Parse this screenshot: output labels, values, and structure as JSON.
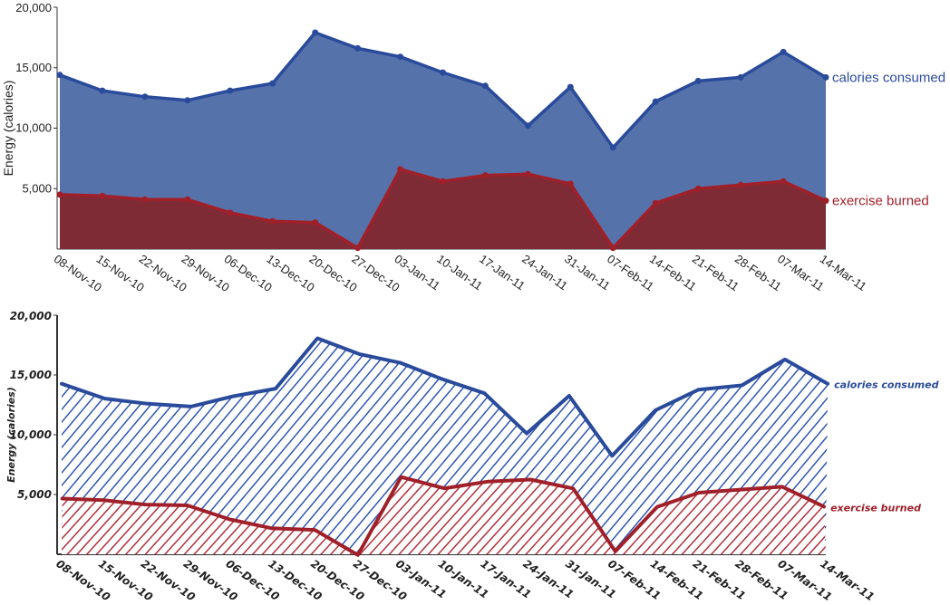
{
  "chart_data": [
    {
      "type": "area",
      "style": "clean",
      "ylabel": "Energy (calories)",
      "ylim": [
        0,
        20000
      ],
      "yticks": [
        "20,000",
        "15,000",
        "10,000",
        "5,000"
      ],
      "x": [
        "08-Nov-10",
        "15-Nov-10",
        "22-Nov-10",
        "29-Nov-10",
        "06-Dec-10",
        "13-Dec-10",
        "20-Dec-10",
        "27-Dec-10",
        "03-Jan-11",
        "10-Jan-11",
        "17-Jan-11",
        "24-Jan-11",
        "31-Jan-11",
        "07-Feb-11",
        "14-Feb-11",
        "21-Feb-11",
        "28-Feb-11",
        "07-Mar-11",
        "14-Mar-11"
      ],
      "series": [
        {
          "name": "calories consumed",
          "color": "#2a4b9b",
          "fill": "#5672aa",
          "values": [
            14400,
            13100,
            12600,
            12300,
            13100,
            13700,
            17900,
            16600,
            15900,
            14600,
            13500,
            10200,
            13400,
            8400,
            12200,
            13900,
            14200,
            16300,
            14200
          ]
        },
        {
          "name": "exercise burned",
          "color": "#a0202a",
          "fill": "#7e2b36",
          "values": [
            4500,
            4400,
            4100,
            4100,
            3000,
            2300,
            2200,
            100,
            6600,
            5600,
            6100,
            6200,
            5400,
            100,
            3800,
            5000,
            5300,
            5600,
            4000
          ]
        }
      ]
    },
    {
      "type": "area",
      "style": "hand-drawn",
      "ylabel": "Energy (calories)",
      "ylim": [
        0,
        20000
      ],
      "yticks": [
        "20,000",
        "15,000",
        "10,000",
        "5,000"
      ],
      "x": [
        "08-Nov-10",
        "15-Nov-10",
        "22-Nov-10",
        "29-Nov-10",
        "06-Dec-10",
        "13-Dec-10",
        "20-Dec-10",
        "27-Dec-10",
        "03-Jan-11",
        "10-Jan-11",
        "17-Jan-11",
        "24-Jan-11",
        "31-Jan-11",
        "07-Feb-11",
        "14-Feb-11",
        "21-Feb-11",
        "28-Feb-11",
        "07-Mar-11",
        "14-Mar-11"
      ],
      "series": [
        {
          "name": "calories consumed",
          "color": "#2a4b9b",
          "fill": "#3a5fb0",
          "values": [
            14400,
            13100,
            12600,
            12300,
            13100,
            13700,
            17900,
            16600,
            15900,
            14600,
            13500,
            10200,
            13400,
            8400,
            12200,
            13900,
            14200,
            16300,
            14200
          ]
        },
        {
          "name": "exercise burned",
          "color": "#a0202a",
          "fill": "#b0303a",
          "values": [
            4500,
            4400,
            4100,
            4100,
            3000,
            2300,
            2200,
            100,
            6600,
            5600,
            6100,
            6200,
            5400,
            100,
            3800,
            5000,
            5300,
            5600,
            4000
          ]
        }
      ]
    }
  ]
}
